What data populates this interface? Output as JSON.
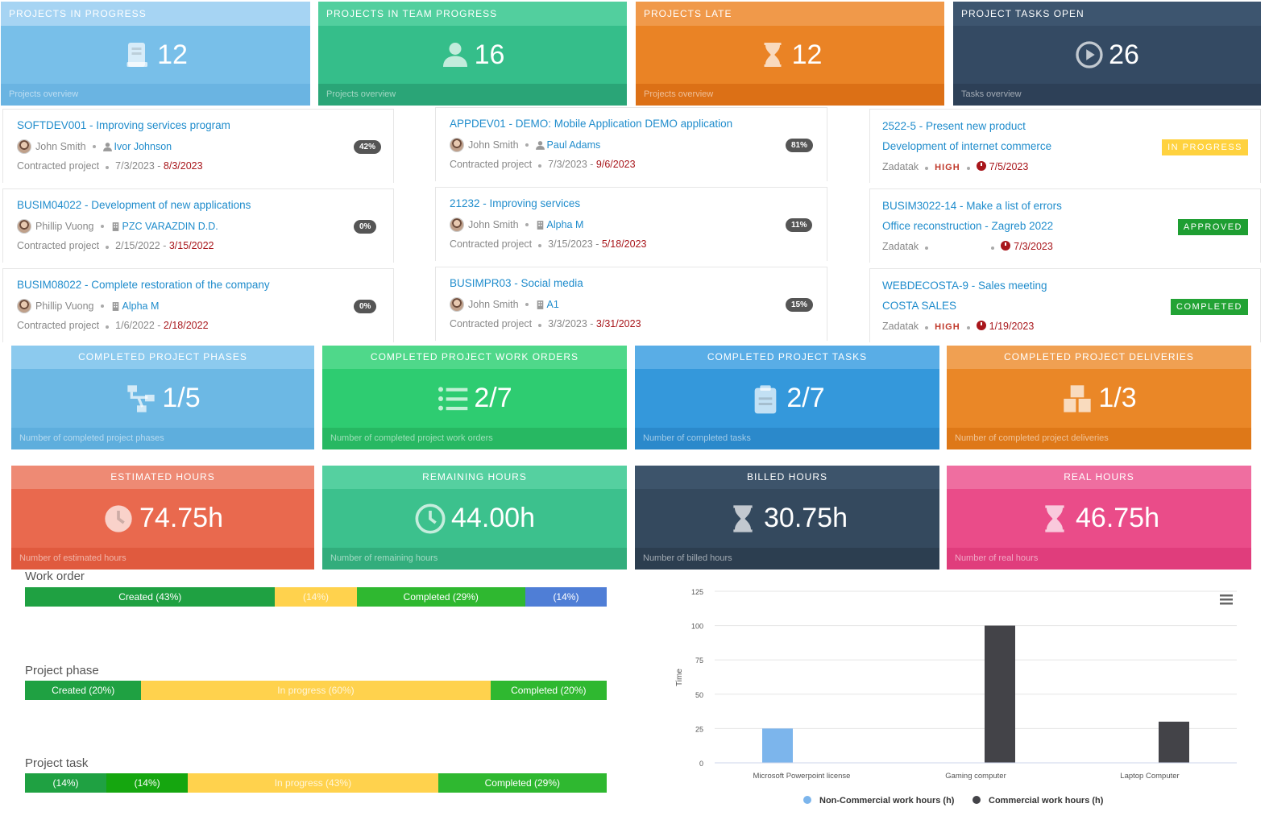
{
  "top_tiles": [
    {
      "title": "PROJECTS IN PROGRESS",
      "value": "12",
      "footer": "Projects overview",
      "icon": "book-icon",
      "color": "#78bfe9",
      "head": "#a6d4f3",
      "foot": "#6ab4e2"
    },
    {
      "title": "PROJECTS IN TEAM PROGRESS",
      "value": "16",
      "footer": "Projects overview",
      "icon": "user-icon",
      "color": "#35be8a",
      "head": "#52cf9e",
      "foot": "#2aa577"
    },
    {
      "title": "PROJECTS LATE",
      "value": "12",
      "footer": "Projects overview",
      "icon": "hourglass-icon",
      "color": "#ea8325",
      "head": "#f0994a",
      "foot": "#dc7016"
    },
    {
      "title": "PROJECT TASKS OPEN",
      "value": "26",
      "footer": "Tasks overview",
      "icon": "play-circle-icon",
      "color": "#344a63",
      "head": "#3d556f",
      "foot": "#2d4057"
    }
  ],
  "projects_col1": [
    {
      "title": "SOFTDEV001 - Improving services program",
      "owner": "John Smith",
      "assignee": "Ivor Johnson",
      "assignee_icon": "user-icon",
      "type": "Contracted project",
      "start": "7/3/2023",
      "due": "8/3/2023",
      "progress": "42%"
    },
    {
      "title": "BUSIM04022 - Development of new applications",
      "owner": "Phillip Vuong",
      "assignee": "PZC VARAZDIN D.D.",
      "assignee_icon": "building-icon",
      "type": "Contracted project",
      "start": "2/15/2022",
      "due": "3/15/2022",
      "progress": "0%"
    },
    {
      "title": "BUSIM08022 - Complete restoration of the company",
      "owner": "Phillip Vuong",
      "assignee": "Alpha M",
      "assignee_icon": "building-icon",
      "type": "Contracted project",
      "start": "1/6/2022",
      "due": "2/18/2022",
      "progress": "0%"
    }
  ],
  "projects_col2": [
    {
      "title": "APPDEV01 - DEMO: Mobile Application DEMO application",
      "owner": "John Smith",
      "assignee": "Paul Adams",
      "assignee_icon": "user-icon",
      "type": "Contracted project",
      "start": "7/3/2023",
      "due": "9/6/2023",
      "progress": "81%"
    },
    {
      "title": "21232 - Improving services",
      "owner": "John Smith",
      "assignee": "Alpha M",
      "assignee_icon": "building-icon",
      "type": "Contracted project",
      "start": "3/15/2023",
      "due": "5/18/2023",
      "progress": "11%"
    },
    {
      "title": "BUSIMPR03 - Social media",
      "owner": "John Smith",
      "assignee": "A1",
      "assignee_icon": "building-icon",
      "type": "Contracted project",
      "start": "3/3/2023",
      "due": "3/31/2023",
      "progress": "15%"
    }
  ],
  "tasks_col3": [
    {
      "title": "2522-5 - Present new product",
      "subtitle": "Development of internet commerce",
      "owner": "Zadatak",
      "priority": "HIGH",
      "due": "7/5/2023",
      "status": "IN PROGRESS",
      "status_color": "#ffd23f"
    },
    {
      "title": "BUSIM3022-14 - Make a list of errors",
      "subtitle": "Office reconstruction - Zagreb 2022",
      "owner": "Zadatak",
      "priority": "",
      "due": "7/3/2023",
      "status": "APPROVED",
      "status_color": "#1e9e32"
    },
    {
      "title": "WEBDECOSTA-9 - Sales meeting",
      "subtitle": "COSTA SALES",
      "owner": "Zadatak",
      "priority": "HIGH",
      "due": "1/19/2023",
      "status": "COMPLETED",
      "status_color": "#22a335"
    }
  ],
  "mid_tiles": [
    {
      "title": "COMPLETED PROJECT PHASES",
      "value": "1/5",
      "footer": "Number of completed project phases",
      "icon": "sitemap-icon",
      "color": "#6cb8e4",
      "head": "#8ccaee",
      "foot": "#5eaedd"
    },
    {
      "title": "COMPLETED PROJECT WORK ORDERS",
      "value": "2/7",
      "footer": "Number of completed project work orders",
      "icon": "list-icon",
      "color": "#2ecc71",
      "head": "#4fd88a",
      "foot": "#27b862"
    },
    {
      "title": "COMPLETED PROJECT TASKS",
      "value": "2/7",
      "footer": "Number of completed tasks",
      "icon": "clipboard-icon",
      "color": "#3498db",
      "head": "#59ade6",
      "foot": "#2b89cb"
    },
    {
      "title": "COMPLETED PROJECT DELIVERIES",
      "value": "1/3",
      "footer": "Number of completed project deliveries",
      "icon": "boxes-icon",
      "color": "#ea8727",
      "head": "#f0a052",
      "foot": "#de7818"
    }
  ],
  "hour_tiles": [
    {
      "title": "ESTIMATED HOURS",
      "value": "74.75h",
      "footer": "Number of estimated hours",
      "icon": "clock-icon",
      "color": "#e9694e",
      "head": "#ee8a74",
      "foot": "#e05a3e"
    },
    {
      "title": "REMAINING HOURS",
      "value": "44.00h",
      "footer": "Number of remaining hours",
      "icon": "clock-outline-icon",
      "color": "#3cc18d",
      "head": "#55d0a0",
      "foot": "#32ad7c"
    },
    {
      "title": "BILLED HOURS",
      "value": "30.75h",
      "footer": "Number of billed hours",
      "icon": "hourglass-icon",
      "color": "#34495e",
      "head": "#3d546b",
      "foot": "#2c3e50"
    },
    {
      "title": "REAL HOURS",
      "value": "46.75h",
      "footer": "Number of real hours",
      "icon": "hourglass-icon",
      "color": "#ea4c89",
      "head": "#ef6ea0",
      "foot": "#e03d7c"
    }
  ],
  "progress_bars": [
    {
      "title": "Work order",
      "segments": [
        {
          "label": "Created (43%)",
          "pct": 43,
          "color": "#1fa142"
        },
        {
          "label": "(14%)",
          "pct": 14,
          "color": "#ffd24d"
        },
        {
          "label": "Completed (29%)",
          "pct": 29,
          "color": "#2fb830"
        },
        {
          "label": "(14%)",
          "pct": 14,
          "color": "#4f7ed6"
        }
      ]
    },
    {
      "title": "Project phase",
      "segments": [
        {
          "label": "Created (20%)",
          "pct": 20,
          "color": "#1fa142"
        },
        {
          "label": "In progress (60%)",
          "pct": 60,
          "color": "#ffd24d"
        },
        {
          "label": "Completed (20%)",
          "pct": 20,
          "color": "#2fb830"
        }
      ]
    },
    {
      "title": "Project task",
      "segments": [
        {
          "label": "(14%)",
          "pct": 14,
          "color": "#1fa142"
        },
        {
          "label": "(14%)",
          "pct": 14,
          "color": "#15a60f"
        },
        {
          "label": "In progress (43%)",
          "pct": 43,
          "color": "#ffd24d"
        },
        {
          "label": "Completed (29%)",
          "pct": 29,
          "color": "#2fb830"
        }
      ]
    }
  ],
  "chart_data": {
    "type": "bar",
    "categories": [
      "Microsoft Powerpoint license",
      "Gaming computer",
      "Laptop Computer"
    ],
    "series": [
      {
        "name": "Non-Commercial work hours (h)",
        "values": [
          25,
          0,
          0
        ],
        "color": "#7cb5ec"
      },
      {
        "name": "Commercial work hours (h)",
        "values": [
          0,
          100,
          30
        ],
        "color": "#434348"
      }
    ],
    "ylabel": "Time",
    "ylim": [
      0,
      125
    ],
    "yticks": [
      0,
      25,
      50,
      75,
      100,
      125
    ],
    "grid": true,
    "legend": "bottom-center"
  }
}
